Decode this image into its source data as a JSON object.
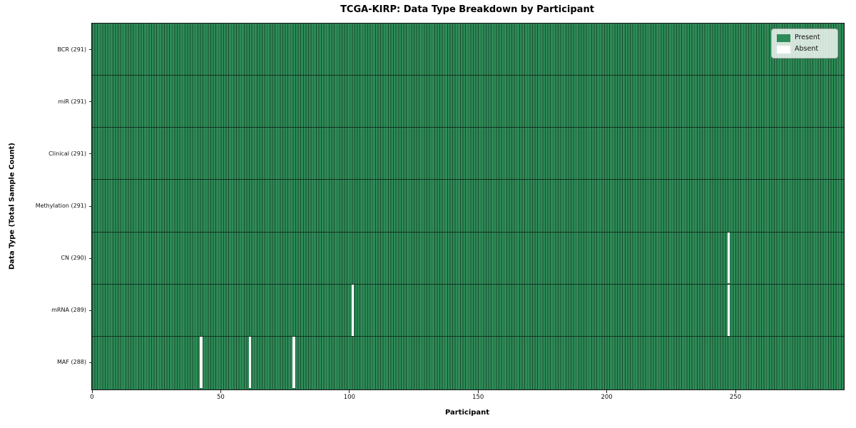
{
  "figure": {
    "title": "TCGA-KIRP: Data Type Breakdown by Participant",
    "xlabel": "Participant",
    "ylabel": "Data Type (Total Sample Count)"
  },
  "legend": {
    "position": "upper-right",
    "items": [
      {
        "label": "Present",
        "color": "#2e8b57"
      },
      {
        "label": "Absent",
        "color": "#ffffff"
      }
    ]
  },
  "chart_data": {
    "type": "heatmap",
    "title": "TCGA-KIRP: Data Type Breakdown by Participant",
    "xlabel": "Participant",
    "ylabel": "Data Type (Total Sample Count)",
    "x_ticks": [
      0,
      50,
      100,
      150,
      200,
      250
    ],
    "x_range": [
      0,
      292
    ],
    "n_participants": 291,
    "cell_value_meaning": {
      "present": 1,
      "absent": 0
    },
    "colors": {
      "present": "#2e8b57",
      "absent": "#ffffff",
      "cell_edge": "rgba(0,0,0,0.45)"
    },
    "grid": "cell-edges",
    "legend_position": "upper right",
    "rows": [
      {
        "label": "BCR (291)",
        "data_type": "BCR",
        "total": 291,
        "absent_participants": []
      },
      {
        "label": "miR (291)",
        "data_type": "miR",
        "total": 291,
        "absent_participants": []
      },
      {
        "label": "Clinical (291)",
        "data_type": "Clinical",
        "total": 291,
        "absent_participants": []
      },
      {
        "label": "Methylation (291)",
        "data_type": "Methylation",
        "total": 291,
        "absent_participants": []
      },
      {
        "label": "CN (290)",
        "data_type": "CN",
        "total": 290,
        "absent_participants": [
          247
        ]
      },
      {
        "label": "mRNA (289)",
        "data_type": "mRNA",
        "total": 289,
        "absent_participants": [
          101,
          247
        ]
      },
      {
        "label": "MAF (288)",
        "data_type": "MAF",
        "total": 288,
        "absent_participants": [
          42,
          61,
          78
        ]
      }
    ]
  }
}
